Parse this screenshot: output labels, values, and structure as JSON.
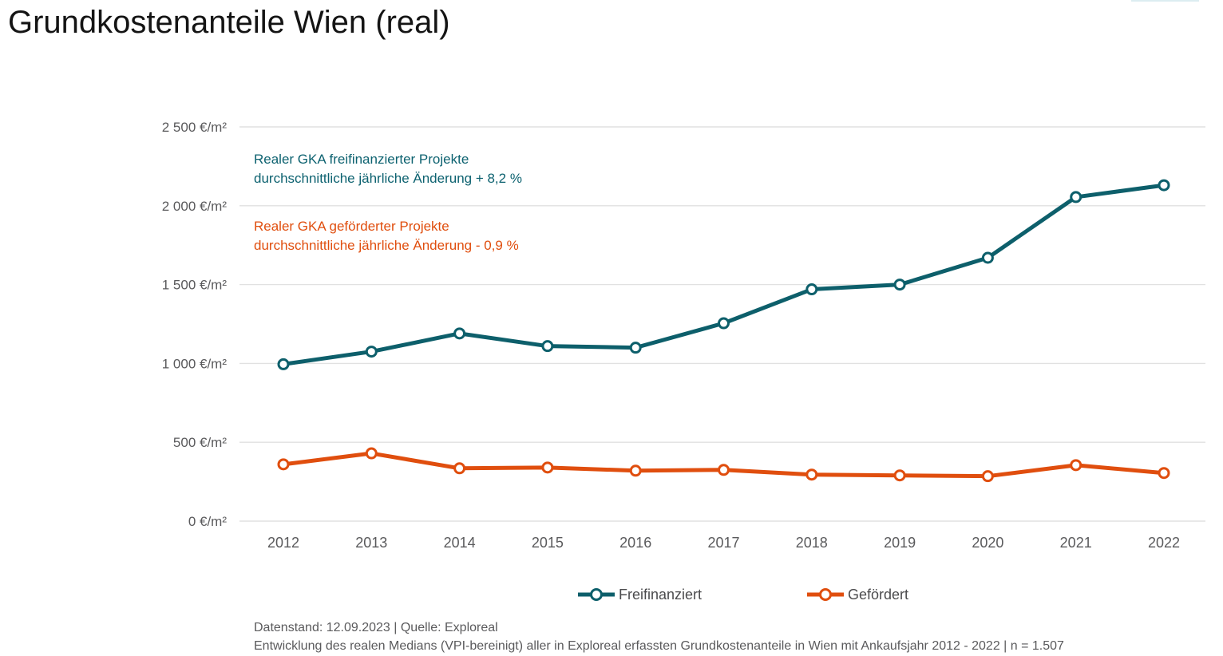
{
  "page": {
    "title": "Grundkostenanteile Wien (real)"
  },
  "annotations": {
    "freifinanziert": {
      "line1": "Realer GKA freifinanzierter Projekte",
      "line2": "durchschnittliche jährliche Änderung + 8,2 %"
    },
    "gefoerdert": {
      "line1": "Realer GKA geförderter Projekte",
      "line2": "durchschnittliche jährliche Änderung - 0,9 %"
    }
  },
  "legend": {
    "items": [
      {
        "label": "Freifinanziert",
        "color": "#0d5f6b"
      },
      {
        "label": "Gefördert",
        "color": "#e04e0e"
      }
    ],
    "position": "bottom"
  },
  "footer": {
    "line1": "Datenstand: 12.09.2023 | Quelle: Exploreal",
    "line2": "Entwicklung des realen Medians (VPI-bereinigt) aller in Exploreal erfassten Grundkostenanteile in Wien mit Ankaufsjahr 2012 - 2022 | n = 1.507"
  },
  "colors": {
    "freifinanziert": "#0d5f6b",
    "gefoerdert": "#e04e0e",
    "gridline": "#e1e1e1",
    "axis_text": "#5a5a5c",
    "title_text": "#141414"
  },
  "chart_data": {
    "type": "line",
    "title": "Grundkostenanteile Wien (real)",
    "x": [
      2012,
      2013,
      2014,
      2015,
      2016,
      2017,
      2018,
      2019,
      2020,
      2021,
      2022
    ],
    "series": [
      {
        "name": "Freifinanziert",
        "color": "#0d5f6b",
        "values": [
          995,
          1075,
          1190,
          1110,
          1100,
          1255,
          1470,
          1500,
          1670,
          2055,
          2130
        ]
      },
      {
        "name": "Gefördert",
        "color": "#e04e0e",
        "values": [
          360,
          430,
          335,
          340,
          320,
          325,
          295,
          290,
          285,
          355,
          305
        ]
      }
    ],
    "y_unit": "€/m²",
    "y_ticks": [
      {
        "value": 0,
        "label": "0 €/m²"
      },
      {
        "value": 500,
        "label": "500 €/m²"
      },
      {
        "value": 1000,
        "label": "1 000 €/m²"
      },
      {
        "value": 1500,
        "label": "1 500 €/m²"
      },
      {
        "value": 2000,
        "label": "2 000 €/m²"
      },
      {
        "value": 2500,
        "label": "2 500 €/m²"
      }
    ],
    "ylim": [
      0,
      2500
    ],
    "xlabel": "",
    "ylabel": "",
    "grid": "horizontal-only",
    "legend_position": "bottom",
    "marker": "open-circle"
  }
}
